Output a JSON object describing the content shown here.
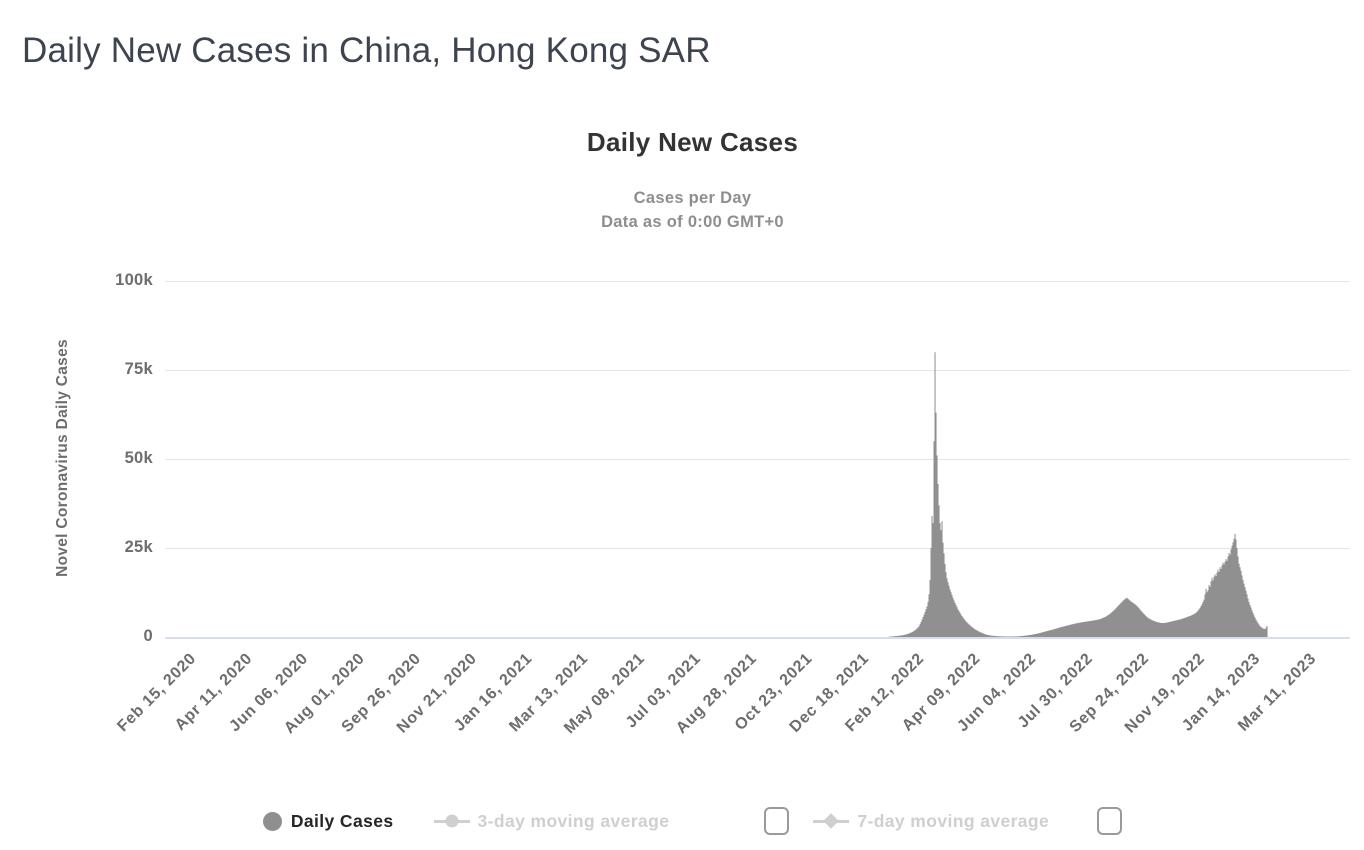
{
  "page": {
    "title": "Daily New Cases in China, Hong Kong SAR"
  },
  "chart": {
    "title": "Daily New Cases",
    "subtitle_line1": "Cases per Day",
    "subtitle_line2": "Data as of 0:00 GMT+0",
    "y_axis_title": "Novel Coronavirus Daily Cases",
    "legend": {
      "daily_cases": "Daily Cases",
      "avg3": "3-day moving average",
      "avg7": "7-day moving average",
      "avg3_checked": false,
      "avg7_checked": false
    },
    "colors": {
      "bar": "#909090",
      "grid": "#e6e6e6",
      "axis_line": "#d7ddeb",
      "axis_label": "#6d6d6d",
      "disabled_legend": "#cfcfcf",
      "active_legend_text": "#262626",
      "title_text": "#333333",
      "page_title_text": "#3d4450"
    }
  },
  "chart_data": {
    "type": "bar",
    "title": "Daily New Cases",
    "subtitle": [
      "Cases per Day",
      "Data as of 0:00 GMT+0"
    ],
    "series_name": "Daily Cases",
    "xlabel": "",
    "ylabel": "Novel Coronavirus Daily Cases",
    "ylim": [
      0,
      100000
    ],
    "y_ticks": [
      "0",
      "25k",
      "50k",
      "75k",
      "100k"
    ],
    "x_ticks": [
      "Feb 15, 2020",
      "Apr 11, 2020",
      "Jun 06, 2020",
      "Aug 01, 2020",
      "Sep 26, 2020",
      "Nov 21, 2020",
      "Jan 16, 2021",
      "Mar 13, 2021",
      "May 08, 2021",
      "Jul 03, 2021",
      "Aug 28, 2021",
      "Oct 23, 2021",
      "Dec 18, 2021",
      "Feb 12, 2022",
      "Apr 09, 2022",
      "Jun 04, 2022",
      "Jul 30, 2022",
      "Sep 24, 2022",
      "Nov 19, 2022",
      "Jan 14, 2023",
      "Mar 11, 2023"
    ],
    "x_start_date": "Feb 15, 2020",
    "x_tick_interval_days": 56,
    "grid": "horizontal",
    "legend_position": "bottom",
    "points_day_value": [
      [
        0,
        0
      ],
      [
        699,
        0
      ],
      [
        702,
        120
      ],
      [
        706,
        200
      ],
      [
        711,
        350
      ],
      [
        715,
        500
      ],
      [
        719,
        800
      ],
      [
        722,
        1100
      ],
      [
        725,
        1500
      ],
      [
        727,
        1900
      ],
      [
        729,
        2400
      ],
      [
        731,
        3000
      ],
      [
        733,
        4200
      ],
      [
        735,
        5600
      ],
      [
        737,
        7000
      ],
      [
        739,
        8600
      ],
      [
        740,
        9800
      ],
      [
        741,
        12000
      ],
      [
        742,
        16000
      ],
      [
        743,
        25000
      ],
      [
        744,
        34000
      ],
      [
        745,
        32000
      ],
      [
        746,
        55000
      ],
      [
        747,
        80000
      ],
      [
        748,
        63000
      ],
      [
        749,
        51000
      ],
      [
        750,
        43000
      ],
      [
        751,
        37000
      ],
      [
        752,
        32000
      ],
      [
        753,
        30000
      ],
      [
        754,
        32500
      ],
      [
        755,
        26500
      ],
      [
        756,
        23500
      ],
      [
        757,
        20500
      ],
      [
        758,
        18200
      ],
      [
        759,
        16500
      ],
      [
        760,
        15400
      ],
      [
        761,
        14400
      ],
      [
        762,
        13400
      ],
      [
        763,
        12600
      ],
      [
        764,
        11800
      ],
      [
        765,
        11000
      ],
      [
        766,
        10300
      ],
      [
        767,
        9600
      ],
      [
        768,
        9000
      ],
      [
        769,
        8400
      ],
      [
        770,
        7800
      ],
      [
        772,
        6800
      ],
      [
        774,
        5900
      ],
      [
        776,
        5100
      ],
      [
        778,
        4400
      ],
      [
        780,
        3800
      ],
      [
        782,
        3300
      ],
      [
        784,
        2800
      ],
      [
        786,
        2400
      ],
      [
        788,
        2000
      ],
      [
        790,
        1700
      ],
      [
        792,
        1400
      ],
      [
        794,
        1150
      ],
      [
        796,
        900
      ],
      [
        798,
        700
      ],
      [
        800,
        550
      ],
      [
        803,
        400
      ],
      [
        806,
        300
      ],
      [
        810,
        220
      ],
      [
        815,
        160
      ],
      [
        822,
        130
      ],
      [
        830,
        180
      ],
      [
        837,
        350
      ],
      [
        844,
        650
      ],
      [
        851,
        1050
      ],
      [
        858,
        1600
      ],
      [
        865,
        2100
      ],
      [
        872,
        2700
      ],
      [
        879,
        3200
      ],
      [
        886,
        3700
      ],
      [
        893,
        4100
      ],
      [
        900,
        4400
      ],
      [
        907,
        4700
      ],
      [
        912,
        5000
      ],
      [
        917,
        5600
      ],
      [
        922,
        6500
      ],
      [
        927,
        7800
      ],
      [
        931,
        9000
      ],
      [
        934,
        9900
      ],
      [
        937,
        10700
      ],
      [
        939,
        11000
      ],
      [
        941,
        10500
      ],
      [
        943,
        10000
      ],
      [
        945,
        9600
      ],
      [
        947,
        9200
      ],
      [
        949,
        8700
      ],
      [
        951,
        8100
      ],
      [
        953,
        7400
      ],
      [
        955,
        6800
      ],
      [
        957,
        6200
      ],
      [
        959,
        5600
      ],
      [
        961,
        5200
      ],
      [
        963,
        4900
      ],
      [
        966,
        4500
      ],
      [
        969,
        4200
      ],
      [
        972,
        4000
      ],
      [
        975,
        3900
      ],
      [
        978,
        4000
      ],
      [
        981,
        4200
      ],
      [
        984,
        4400
      ],
      [
        987,
        4600
      ],
      [
        990,
        4800
      ],
      [
        993,
        5000
      ],
      [
        996,
        5300
      ],
      [
        999,
        5600
      ],
      [
        1002,
        5900
      ],
      [
        1005,
        6300
      ],
      [
        1008,
        6800
      ],
      [
        1010,
        7400
      ],
      [
        1012,
        8200
      ],
      [
        1014,
        9200
      ],
      [
        1016,
        10500
      ],
      [
        1017,
        12000
      ],
      [
        1018,
        13500
      ],
      [
        1019,
        12600
      ],
      [
        1020,
        13100
      ],
      [
        1021,
        14600
      ],
      [
        1022,
        14100
      ],
      [
        1023,
        15600
      ],
      [
        1024,
        16600
      ],
      [
        1025,
        15900
      ],
      [
        1026,
        16900
      ],
      [
        1027,
        17600
      ],
      [
        1028,
        17100
      ],
      [
        1029,
        18100
      ],
      [
        1030,
        18900
      ],
      [
        1031,
        18300
      ],
      [
        1032,
        19600
      ],
      [
        1033,
        19100
      ],
      [
        1034,
        20100
      ],
      [
        1035,
        20900
      ],
      [
        1036,
        20400
      ],
      [
        1037,
        21100
      ],
      [
        1038,
        21900
      ],
      [
        1039,
        21400
      ],
      [
        1040,
        22600
      ],
      [
        1041,
        23600
      ],
      [
        1042,
        23100
      ],
      [
        1043,
        24600
      ],
      [
        1044,
        25600
      ],
      [
        1045,
        26600
      ],
      [
        1046,
        27600
      ],
      [
        1047,
        29000
      ],
      [
        1048,
        27400
      ],
      [
        1049,
        25000
      ],
      [
        1050,
        22600
      ],
      [
        1051,
        20600
      ],
      [
        1052,
        19600
      ],
      [
        1053,
        18600
      ],
      [
        1054,
        17300
      ],
      [
        1055,
        16000
      ],
      [
        1056,
        15000
      ],
      [
        1057,
        14000
      ],
      [
        1058,
        13000
      ],
      [
        1059,
        12000
      ],
      [
        1060,
        10800
      ],
      [
        1061,
        9800
      ],
      [
        1062,
        9000
      ],
      [
        1063,
        8300
      ],
      [
        1064,
        7500
      ],
      [
        1065,
        6800
      ],
      [
        1066,
        6100
      ],
      [
        1067,
        5500
      ],
      [
        1068,
        4900
      ],
      [
        1069,
        4400
      ],
      [
        1070,
        3900
      ],
      [
        1071,
        3500
      ],
      [
        1072,
        3100
      ],
      [
        1073,
        2800
      ],
      [
        1074,
        2600
      ],
      [
        1075,
        2400
      ],
      [
        1076,
        2300
      ],
      [
        1077,
        2200
      ],
      [
        1078,
        2600
      ],
      [
        1079,
        3100
      ]
    ]
  }
}
